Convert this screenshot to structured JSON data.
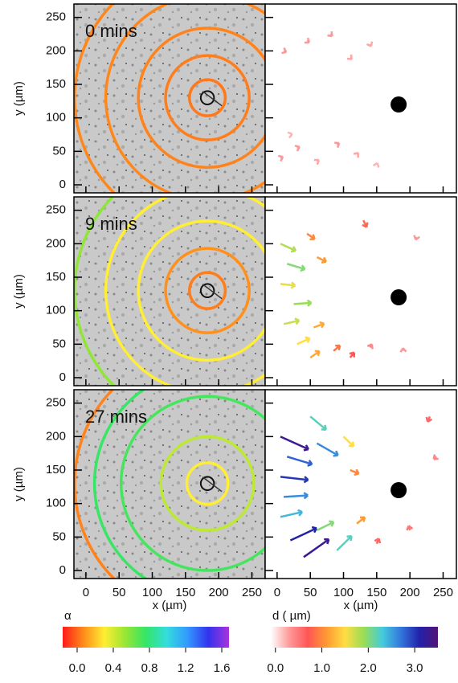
{
  "panels": [
    {
      "label": "0 mins",
      "rings": [
        {
          "r": 27,
          "alpha": 0.03
        },
        {
          "r": 63,
          "alpha": 0.04
        },
        {
          "r": 104,
          "alpha": 0.05
        },
        {
          "r": 153,
          "alpha": 0.06
        },
        {
          "r": 200,
          "alpha": 0.06
        }
      ],
      "arrows": [
        [
          5,
          40,
          0.3
        ],
        [
          30,
          55,
          0.3
        ],
        [
          60,
          35,
          0.25
        ],
        [
          90,
          60,
          0.3
        ],
        [
          120,
          45,
          0.25
        ],
        [
          150,
          30,
          0.2
        ],
        [
          10,
          200,
          0.3
        ],
        [
          45,
          215,
          0.3
        ],
        [
          80,
          225,
          0.3
        ],
        [
          110,
          190,
          0.25
        ],
        [
          140,
          210,
          0.25
        ],
        [
          20,
          75,
          0.2
        ]
      ]
    },
    {
      "label": "9 mins",
      "rings": [
        {
          "r": 27,
          "alpha": 0.04
        },
        {
          "r": 63,
          "alpha": 0.08
        },
        {
          "r": 104,
          "alpha": 0.3
        },
        {
          "r": 153,
          "alpha": 0.3
        },
        {
          "r": 200,
          "alpha": 0.55
        }
      ],
      "arrows": [
        [
          5,
          200,
          1.8
        ],
        [
          15,
          170,
          2.0
        ],
        [
          5,
          140,
          1.6
        ],
        [
          25,
          110,
          1.9
        ],
        [
          10,
          80,
          1.7
        ],
        [
          30,
          50,
          1.5
        ],
        [
          50,
          30,
          1.2
        ],
        [
          45,
          215,
          1.0
        ],
        [
          60,
          180,
          1.1
        ],
        [
          55,
          75,
          1.2
        ],
        [
          85,
          40,
          0.9
        ],
        [
          110,
          30,
          0.7
        ],
        [
          130,
          235,
          0.8
        ],
        [
          140,
          45,
          0.4
        ],
        [
          190,
          40,
          0.3
        ],
        [
          210,
          210,
          0.3
        ]
      ]
    },
    {
      "label": "27 mins",
      "rings": [
        {
          "r": 31,
          "alpha": 0.3
        },
        {
          "r": 70,
          "alpha": 0.45
        },
        {
          "r": 130,
          "alpha": 0.72
        },
        {
          "r": 170,
          "alpha": 0.75
        },
        {
          "r": 200,
          "alpha": 0.05
        }
      ],
      "arrows": [
        [
          5,
          200,
          3.3
        ],
        [
          15,
          170,
          2.8
        ],
        [
          5,
          140,
          3.0
        ],
        [
          10,
          110,
          2.6
        ],
        [
          5,
          80,
          2.4
        ],
        [
          20,
          45,
          3.1
        ],
        [
          40,
          20,
          3.3
        ],
        [
          50,
          230,
          2.2
        ],
        [
          60,
          190,
          2.6
        ],
        [
          60,
          60,
          2.0
        ],
        [
          90,
          30,
          2.2
        ],
        [
          100,
          200,
          1.5
        ],
        [
          110,
          150,
          1.0
        ],
        [
          120,
          70,
          1.1
        ],
        [
          150,
          40,
          0.6
        ],
        [
          200,
          60,
          0.5
        ],
        [
          230,
          230,
          0.6
        ],
        [
          240,
          170,
          0.4
        ]
      ]
    }
  ],
  "target": {
    "x": 183,
    "y": 120
  },
  "pipette": {
    "x": 183,
    "y": 130,
    "r": 10
  },
  "xaxis": {
    "label": "x (µm)",
    "lim": [
      -18,
      270
    ],
    "ticks": [
      0,
      50,
      100,
      150,
      200,
      250
    ]
  },
  "yaxis": {
    "label": "y (µm)",
    "lim": [
      -12,
      270
    ],
    "ticks": [
      0,
      50,
      100,
      150,
      200,
      250
    ]
  },
  "colorbars": [
    {
      "label": "α",
      "lim": [
        -0.16,
        1.68
      ],
      "ticks": [
        {
          "value": 0,
          "label": "0.0"
        },
        {
          "value": 0.4,
          "label": "0.4"
        },
        {
          "value": 0.8,
          "label": "0.8"
        },
        {
          "value": 1.2,
          "label": "1.2"
        },
        {
          "value": 1.6,
          "label": "1.6"
        }
      ],
      "colors": [
        "#ff1a1a",
        "#ff8c1a",
        "#ffee33",
        "#99e633",
        "#33e666",
        "#33dddd",
        "#3399ff",
        "#3333ee",
        "#aa33dd"
      ]
    },
    {
      "label": "d ( µm)",
      "lim": [
        -0.1,
        3.5
      ],
      "ticks": [
        {
          "value": 0,
          "label": "0.0"
        },
        {
          "value": 1,
          "label": "1.0"
        },
        {
          "value": 2,
          "label": "2.0"
        },
        {
          "value": 3,
          "label": "3.0"
        }
      ],
      "colors": [
        "#ffffff",
        "#ff9999",
        "#ff5555",
        "#ff9933",
        "#ffdd44",
        "#99dd55",
        "#44ccdd",
        "#3377dd",
        "#2222aa",
        "#551177"
      ]
    }
  ]
}
